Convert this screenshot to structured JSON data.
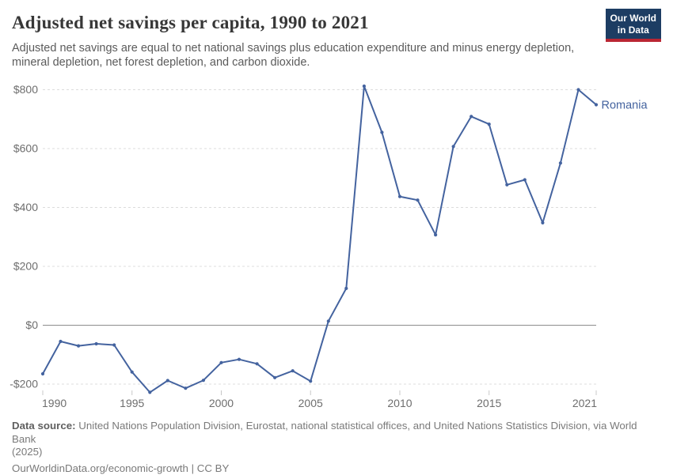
{
  "header": {
    "title": "Adjusted net savings per capita, 1990 to 2021",
    "subtitle": "Adjusted net savings are equal to net national savings plus education expenditure and minus energy depletion,\nmineral depletion, net forest depletion, and carbon dioxide.",
    "logo": {
      "line1": "Our World",
      "line2": "in Data",
      "bg_color": "#1d3d63",
      "bar_color": "#ba2633"
    }
  },
  "chart_data": {
    "type": "line",
    "title": "Adjusted net savings per capita, 1990 to 2021",
    "xlabel": "",
    "ylabel": "",
    "xlim": [
      1990,
      2021
    ],
    "ylim": [
      -250,
      860
    ],
    "grid": "horizontal dashed gridlines, solid line at $0",
    "legend_position": "end-of-line label",
    "x_ticks": [
      1990,
      1995,
      2000,
      2005,
      2010,
      2015,
      2021
    ],
    "y_ticks": [
      -200,
      0,
      200,
      400,
      600,
      800
    ],
    "y_tick_labels": [
      "-$200",
      "$0",
      "$200",
      "$400",
      "$600",
      "$800"
    ],
    "series": [
      {
        "name": "Romania",
        "color": "#44639f",
        "x": [
          1990,
          1991,
          1992,
          1993,
          1994,
          1995,
          1996,
          1997,
          1998,
          1999,
          2000,
          2001,
          2002,
          2003,
          2004,
          2005,
          2006,
          2007,
          2008,
          2009,
          2010,
          2011,
          2012,
          2013,
          2014,
          2015,
          2016,
          2017,
          2018,
          2019,
          2020,
          2021
        ],
        "values": [
          -165,
          -55,
          -70,
          -63,
          -67,
          -159,
          -228,
          -188,
          -214,
          -187,
          -127,
          -116,
          -131,
          -178,
          -155,
          -190,
          14,
          125,
          812,
          655,
          437,
          425,
          307,
          607,
          709,
          683,
          477,
          494,
          348,
          551,
          800,
          749
        ]
      }
    ],
    "colors": {
      "gridline": "#dcdcdc",
      "zero_line": "#8d8d8d",
      "tick": "#c8c8c8",
      "axis_text": "#6e6e6e"
    }
  },
  "footer": {
    "source_label": "Data source:",
    "source_text": " United Nations Population Division, Eurostat, national statistical offices, and United Nations Statistics Division, via World Bank\n(2025)",
    "license_line": "OurWorldinData.org/economic-growth | CC BY"
  }
}
